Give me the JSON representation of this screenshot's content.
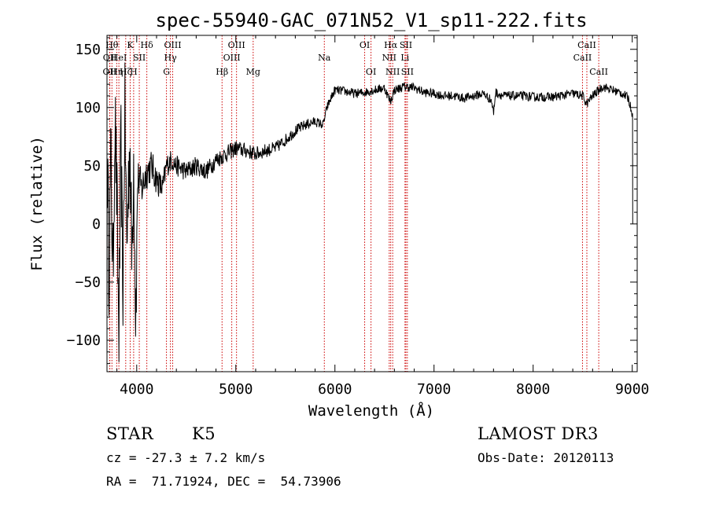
{
  "chart_data": {
    "type": "line",
    "title": "spec-55940-GAC_071N52_V1_sp11-222.fits",
    "xlabel": "Wavelength (Å)",
    "ylabel": "Flux (relative)",
    "xlim": [
      3700,
      9050
    ],
    "ylim": [
      -127,
      162
    ],
    "xticks": [
      4000,
      5000,
      6000,
      7000,
      8000,
      9000
    ],
    "yticks": [
      -100,
      -50,
      0,
      50,
      100,
      150
    ],
    "series": [
      {
        "name": "flux",
        "color": "#000000",
        "anchors": [
          [
            3700,
            80
          ],
          [
            3720,
            -40
          ],
          [
            3740,
            60
          ],
          [
            3760,
            -50
          ],
          [
            3780,
            95
          ],
          [
            3800,
            20
          ],
          [
            3820,
            -100
          ],
          [
            3840,
            70
          ],
          [
            3860,
            -60
          ],
          [
            3880,
            100
          ],
          [
            3900,
            -20
          ],
          [
            3930,
            75
          ],
          [
            3950,
            -30
          ],
          [
            3970,
            60
          ],
          [
            3990,
            -80
          ],
          [
            4010,
            40
          ],
          [
            4050,
            30
          ],
          [
            4100,
            45
          ],
          [
            4150,
            50
          ],
          [
            4200,
            38
          ],
          [
            4260,
            30
          ],
          [
            4300,
            50
          ],
          [
            4350,
            55
          ],
          [
            4400,
            50
          ],
          [
            4500,
            45
          ],
          [
            4600,
            50
          ],
          [
            4700,
            45
          ],
          [
            4800,
            55
          ],
          [
            4900,
            60
          ],
          [
            5000,
            65
          ],
          [
            5100,
            63
          ],
          [
            5200,
            60
          ],
          [
            5300,
            63
          ],
          [
            5400,
            65
          ],
          [
            5500,
            72
          ],
          [
            5600,
            80
          ],
          [
            5700,
            85
          ],
          [
            5800,
            88
          ],
          [
            5880,
            85
          ],
          [
            5920,
            100
          ],
          [
            5960,
            108
          ],
          [
            6000,
            115
          ],
          [
            6100,
            114
          ],
          [
            6200,
            112
          ],
          [
            6300,
            113
          ],
          [
            6400,
            115
          ],
          [
            6500,
            117
          ],
          [
            6560,
            105
          ],
          [
            6600,
            115
          ],
          [
            6700,
            118
          ],
          [
            6800,
            117
          ],
          [
            6900,
            113
          ],
          [
            7000,
            112
          ],
          [
            7100,
            110
          ],
          [
            7200,
            110
          ],
          [
            7300,
            108
          ],
          [
            7400,
            110
          ],
          [
            7500,
            112
          ],
          [
            7580,
            106
          ],
          [
            7600,
            95
          ],
          [
            7620,
            113
          ],
          [
            7700,
            110
          ],
          [
            7800,
            110
          ],
          [
            7900,
            110
          ],
          [
            8000,
            109
          ],
          [
            8200,
            109
          ],
          [
            8400,
            112
          ],
          [
            8500,
            110
          ],
          [
            8540,
            103
          ],
          [
            8600,
            110
          ],
          [
            8700,
            118
          ],
          [
            8800,
            115
          ],
          [
            8900,
            112
          ],
          [
            8960,
            108
          ],
          [
            9000,
            95
          ],
          [
            9005,
            0
          ]
        ]
      }
    ],
    "lines": [
      {
        "wl": 3727,
        "label": "OII",
        "row": 2
      },
      {
        "wl": 3729,
        "label": "OII",
        "row": 1
      },
      {
        "wl": 3750,
        "label": "Hθ",
        "row": 0
      },
      {
        "wl": 3798,
        "label": "Hη",
        "row": 2
      },
      {
        "wl": 3820,
        "label": "HeI",
        "row": 1
      },
      {
        "wl": 3889,
        "label": "Hζ",
        "row": 2
      },
      {
        "wl": 3934,
        "label": "K",
        "row": 0
      },
      {
        "wl": 3969,
        "label": "H",
        "row": 2
      },
      {
        "wl": 4026,
        "label": "SII",
        "row": 1
      },
      {
        "wl": 4102,
        "label": "Hδ",
        "row": 0
      },
      {
        "wl": 4300,
        "label": "G",
        "row": 2
      },
      {
        "wl": 4340,
        "label": "Hγ",
        "row": 1
      },
      {
        "wl": 4363,
        "label": "OIII",
        "row": 0
      },
      {
        "wl": 4861,
        "label": "Hβ",
        "row": 2
      },
      {
        "wl": 4959,
        "label": "OIII",
        "row": 1
      },
      {
        "wl": 5007,
        "label": "OIII",
        "row": 0
      },
      {
        "wl": 5175,
        "label": "Mg",
        "row": 2
      },
      {
        "wl": 5893,
        "label": "Na",
        "row": 1
      },
      {
        "wl": 6300,
        "label": "OI",
        "row": 0
      },
      {
        "wl": 6364,
        "label": "OI",
        "row": 2
      },
      {
        "wl": 6548,
        "label": "NII",
        "row": 1
      },
      {
        "wl": 6563,
        "label": "Hα",
        "row": 0
      },
      {
        "wl": 6583,
        "label": "NII",
        "row": 2
      },
      {
        "wl": 6707,
        "label": "Li",
        "row": 1
      },
      {
        "wl": 6716,
        "label": "SII",
        "row": 0
      },
      {
        "wl": 6731,
        "label": "SII",
        "row": 2
      },
      {
        "wl": 8498,
        "label": "CaII",
        "row": 1
      },
      {
        "wl": 8542,
        "label": "CaII",
        "row": 0
      },
      {
        "wl": 8662,
        "label": "CaII",
        "row": 2
      }
    ],
    "line_color": "#cc0000"
  },
  "info": {
    "class_label": "STAR",
    "subclass": "K5",
    "survey": "LAMOST DR3",
    "redshift_text": "cz = -27.3 ± 7.2 km/s",
    "obs_date_text": "Obs-Date: 20120113",
    "coords_text": "RA =  71.71924, DEC =  54.73906"
  }
}
